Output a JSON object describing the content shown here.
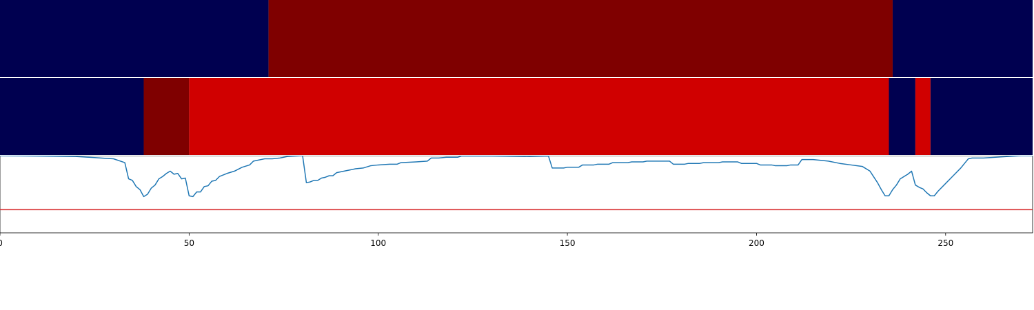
{
  "chart_data": [
    {
      "type": "heatmap",
      "colors": {
        "low": "#000050",
        "mid": "#7f0000",
        "high": "#d00000"
      },
      "segments": [
        {
          "start": 0,
          "end": 71,
          "level": "low"
        },
        {
          "start": 71,
          "end": 236,
          "level": "mid"
        },
        {
          "start": 236,
          "end": 273,
          "level": "low"
        }
      ]
    },
    {
      "type": "heatmap",
      "colors": {
        "low": "#000050",
        "mid": "#7f0000",
        "high": "#d00000"
      },
      "segments": [
        {
          "start": 0,
          "end": 38,
          "level": "low"
        },
        {
          "start": 38,
          "end": 50,
          "level": "mid"
        },
        {
          "start": 50,
          "end": 235,
          "level": "high"
        },
        {
          "start": 235,
          "end": 242,
          "level": "low"
        },
        {
          "start": 242,
          "end": 246,
          "level": "high"
        },
        {
          "start": 246,
          "end": 273,
          "level": "low"
        }
      ]
    },
    {
      "type": "line",
      "line_color": "#1f77b4",
      "threshold_color": "#d62728",
      "threshold": 0.3,
      "xlim": [
        0,
        273
      ],
      "ylim": [
        0,
        1
      ],
      "x_ticks": [
        0,
        50,
        100,
        150,
        200,
        250
      ],
      "x_tick_labels": [
        "0",
        "50",
        "100",
        "150",
        "200",
        "250"
      ],
      "points": [
        [
          0,
          1.0
        ],
        [
          10,
          0.995
        ],
        [
          20,
          0.99
        ],
        [
          25,
          0.975
        ],
        [
          28,
          0.965
        ],
        [
          30,
          0.96
        ],
        [
          33,
          0.91
        ],
        [
          34,
          0.7
        ],
        [
          35,
          0.68
        ],
        [
          36,
          0.6
        ],
        [
          37,
          0.56
        ],
        [
          38,
          0.47
        ],
        [
          39,
          0.5
        ],
        [
          40,
          0.58
        ],
        [
          41,
          0.62
        ],
        [
          42,
          0.7
        ],
        [
          43,
          0.73
        ],
        [
          44,
          0.77
        ],
        [
          45,
          0.8
        ],
        [
          46,
          0.76
        ],
        [
          47,
          0.77
        ],
        [
          48,
          0.7
        ],
        [
          49,
          0.71
        ],
        [
          50,
          0.48
        ],
        [
          51,
          0.47
        ],
        [
          52,
          0.53
        ],
        [
          53,
          0.53
        ],
        [
          54,
          0.6
        ],
        [
          55,
          0.61
        ],
        [
          56,
          0.67
        ],
        [
          57,
          0.68
        ],
        [
          58,
          0.73
        ],
        [
          60,
          0.77
        ],
        [
          62,
          0.8
        ],
        [
          64,
          0.85
        ],
        [
          66,
          0.88
        ],
        [
          67,
          0.93
        ],
        [
          68,
          0.94
        ],
        [
          70,
          0.96
        ],
        [
          72,
          0.96
        ],
        [
          74,
          0.97
        ],
        [
          76,
          0.99
        ],
        [
          80,
          1.0
        ],
        [
          81,
          0.65
        ],
        [
          82,
          0.66
        ],
        [
          83,
          0.68
        ],
        [
          84,
          0.68
        ],
        [
          85,
          0.71
        ],
        [
          86,
          0.72
        ],
        [
          87,
          0.74
        ],
        [
          88,
          0.74
        ],
        [
          89,
          0.78
        ],
        [
          90,
          0.79
        ],
        [
          92,
          0.81
        ],
        [
          94,
          0.83
        ],
        [
          96,
          0.84
        ],
        [
          98,
          0.87
        ],
        [
          100,
          0.88
        ],
        [
          103,
          0.89
        ],
        [
          105,
          0.89
        ],
        [
          106,
          0.91
        ],
        [
          110,
          0.92
        ],
        [
          113,
          0.93
        ],
        [
          114,
          0.97
        ],
        [
          116,
          0.97
        ],
        [
          118,
          0.98
        ],
        [
          121,
          0.98
        ],
        [
          122,
          0.995
        ],
        [
          130,
          0.995
        ],
        [
          140,
          0.99
        ],
        [
          145,
          0.995
        ],
        [
          146,
          0.84
        ],
        [
          149,
          0.84
        ],
        [
          150,
          0.85
        ],
        [
          153,
          0.85
        ],
        [
          154,
          0.88
        ],
        [
          157,
          0.88
        ],
        [
          158,
          0.89
        ],
        [
          161,
          0.89
        ],
        [
          162,
          0.91
        ],
        [
          166,
          0.91
        ],
        [
          167,
          0.92
        ],
        [
          170,
          0.92
        ],
        [
          171,
          0.93
        ],
        [
          177,
          0.93
        ],
        [
          178,
          0.89
        ],
        [
          181,
          0.89
        ],
        [
          182,
          0.9
        ],
        [
          185,
          0.9
        ],
        [
          186,
          0.91
        ],
        [
          190,
          0.91
        ],
        [
          191,
          0.92
        ],
        [
          195,
          0.92
        ],
        [
          196,
          0.9
        ],
        [
          199,
          0.9
        ],
        [
          200,
          0.9
        ],
        [
          201,
          0.88
        ],
        [
          204,
          0.88
        ],
        [
          205,
          0.87
        ],
        [
          208,
          0.87
        ],
        [
          209,
          0.88
        ],
        [
          211,
          0.88
        ],
        [
          212,
          0.95
        ],
        [
          215,
          0.95
        ],
        [
          219,
          0.93
        ],
        [
          222,
          0.9
        ],
        [
          225,
          0.88
        ],
        [
          228,
          0.86
        ],
        [
          230,
          0.8
        ],
        [
          232,
          0.65
        ],
        [
          233,
          0.56
        ],
        [
          234,
          0.48
        ],
        [
          235,
          0.48
        ],
        [
          236,
          0.56
        ],
        [
          237,
          0.62
        ],
        [
          238,
          0.7
        ],
        [
          240,
          0.76
        ],
        [
          241,
          0.8
        ],
        [
          242,
          0.62
        ],
        [
          243,
          0.59
        ],
        [
          244,
          0.57
        ],
        [
          245,
          0.52
        ],
        [
          246,
          0.48
        ],
        [
          247,
          0.48
        ],
        [
          248,
          0.54
        ],
        [
          250,
          0.64
        ],
        [
          252,
          0.74
        ],
        [
          254,
          0.84
        ],
        [
          255,
          0.9
        ],
        [
          256,
          0.96
        ],
        [
          257,
          0.97
        ],
        [
          260,
          0.97
        ],
        [
          265,
          0.985
        ],
        [
          270,
          1.0
        ],
        [
          273,
          1.0
        ]
      ]
    }
  ]
}
